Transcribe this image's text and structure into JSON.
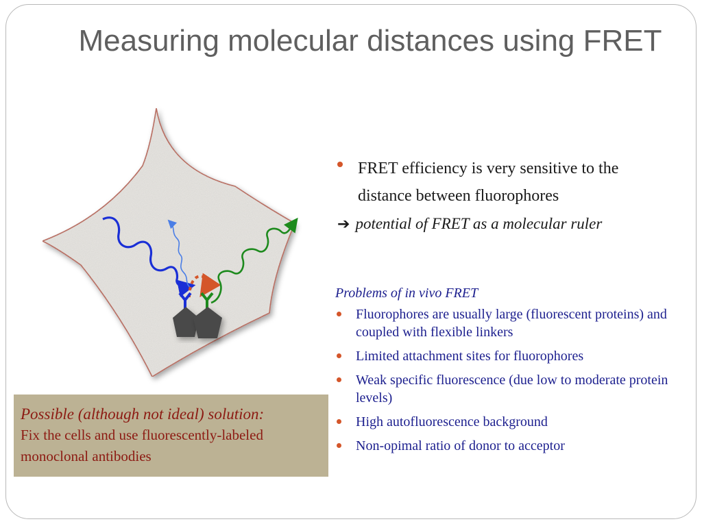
{
  "slide": {
    "title": "Measuring molecular distances using FRET",
    "bullet1": "FRET efficiency is very sensitive to the distance between fluorophores",
    "arrow_text": "potential of FRET as a molecular ruler",
    "problems_heading": "Problems of in vivo FRET",
    "problems": [
      "Fluorophores are usually large (fluorescent proteins) and coupled with flexible linkers",
      "Limited attachment sites for fluorophores",
      "Weak specific fluorescence (due low to moderate protein levels)",
      "High autofluorescence background",
      "Non-opimal ratio of donor to acceptor"
    ],
    "solution_heading": "Possible (although not ideal) solution:",
    "solution_body": "Fix the cells and use fluorescently-labeled monoclonal antibodies"
  },
  "colors": {
    "title": "#5f5f5f",
    "problem_text": "#1c1f8e",
    "solution_text": "#8c1a12",
    "solution_bg": "#bcb294",
    "bullet": "#d4562a",
    "cell_outline": "#b5452a",
    "donor_wave": "#1a2fd6",
    "acceptor_wave": "#1d8a1d",
    "fret_transfer": "#d4562a",
    "protein": "#4a4a4a"
  },
  "icons": [
    "arrow-right-icon",
    "bullet-dot-icon"
  ]
}
